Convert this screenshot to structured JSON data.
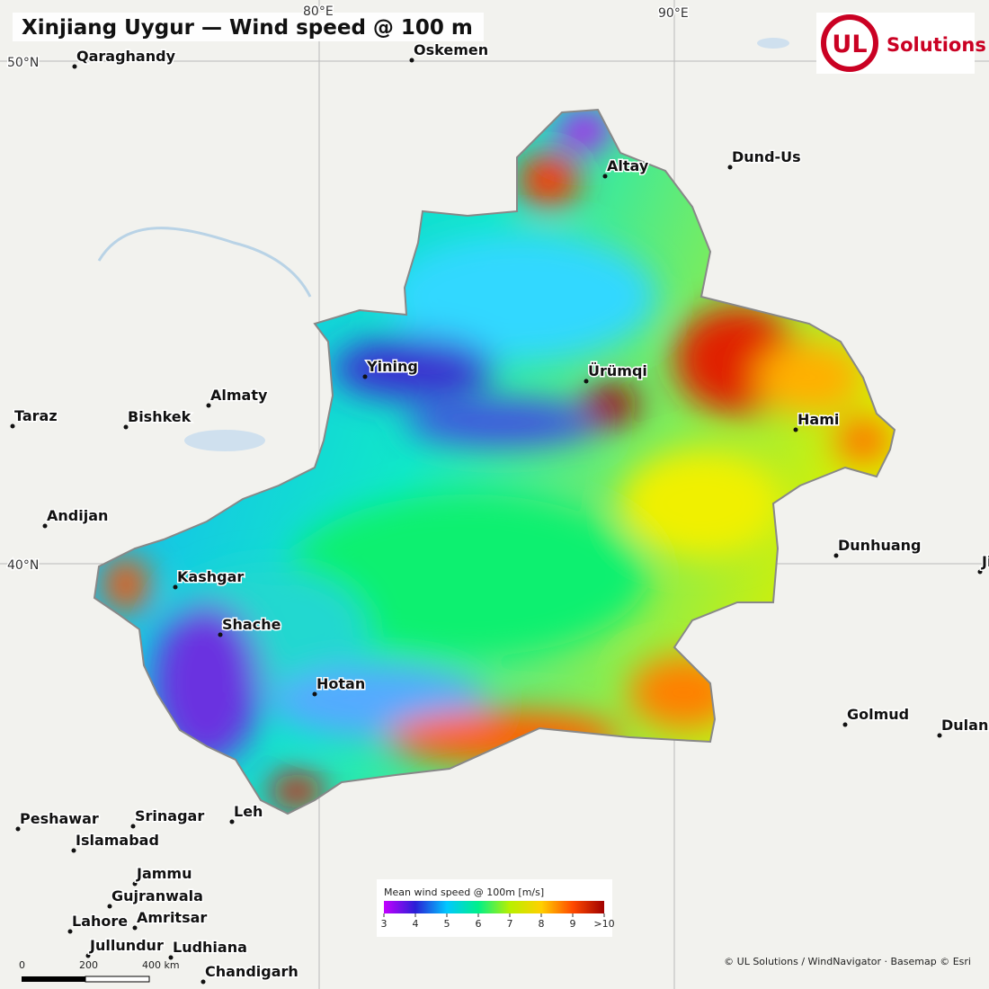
{
  "title": "Xinjiang Uygur — Wind speed @ 100 m",
  "graticule": {
    "lon": [
      "80°E",
      "90°E"
    ],
    "lat": [
      "50°N",
      "40°N"
    ]
  },
  "logo": {
    "mark": "UL",
    "text": "Solutions"
  },
  "cities": [
    "Qaraghandy",
    "Oskemen",
    "Altay",
    "Dund-Us",
    "Yining",
    "Ürümqi",
    "Almaty",
    "Taraz",
    "Bishkek",
    "Hami",
    "Andijan",
    "Kashgar",
    "Shache",
    "Dunhuang",
    "Jiayuguan",
    "Hotan",
    "Golmud",
    "Dulan",
    "Peshawar",
    "Srinagar",
    "Leh",
    "Islamabad",
    "Jammu",
    "Gujranwala",
    "Lahore",
    "Amritsar",
    "Jullundur",
    "Ludhiana",
    "Chandigarh"
  ],
  "legend": {
    "title": "Mean wind speed @ 100m  [m/s]",
    "colors": [
      "#c400ff",
      "#2a1fd6",
      "#00c8ff",
      "#00f08a",
      "#b8f000",
      "#ffd000",
      "#ff4a00",
      "#a00000"
    ],
    "ticks": [
      3,
      4,
      5,
      6,
      7,
      8,
      9,
      {
        "value": 10,
        "label": ">10"
      }
    ]
  },
  "scale_bar": [
    "0",
    "200",
    "400 km"
  ],
  "attribution": "© UL Solutions / WindNavigator · Basemap © Esri"
}
